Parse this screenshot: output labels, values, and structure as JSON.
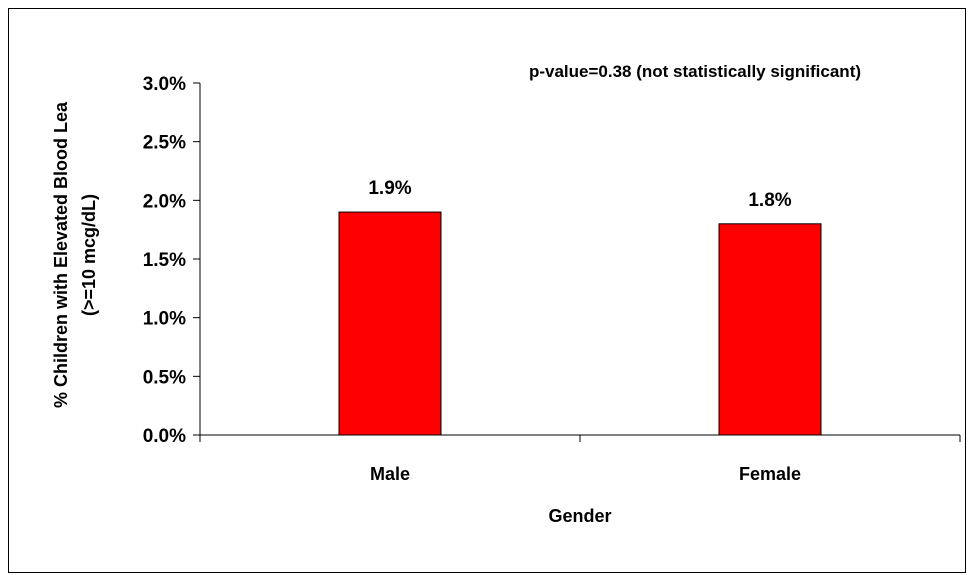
{
  "chart_data": {
    "type": "bar",
    "categories": [
      "Male",
      "Female"
    ],
    "values": [
      1.9,
      1.8
    ],
    "value_labels": [
      "1.9%",
      "1.8%"
    ],
    "title": "",
    "annotation": "p-value=0.38 (not statistically significant)",
    "xlabel": "Gender",
    "ylabel_lines": [
      "% Children with Elevated Blood Lea",
      "(>=10 mcg/dL)"
    ],
    "ylim": [
      0,
      3.0
    ],
    "yticks": [
      0.0,
      0.5,
      1.0,
      1.5,
      2.0,
      2.5,
      3.0
    ],
    "ytick_labels": [
      "0.0%",
      "0.5%",
      "1.0%",
      "1.5%",
      "2.0%",
      "2.5%",
      "3.0%"
    ],
    "bar_color": "#ff0000",
    "grid": false,
    "legend": "none"
  }
}
